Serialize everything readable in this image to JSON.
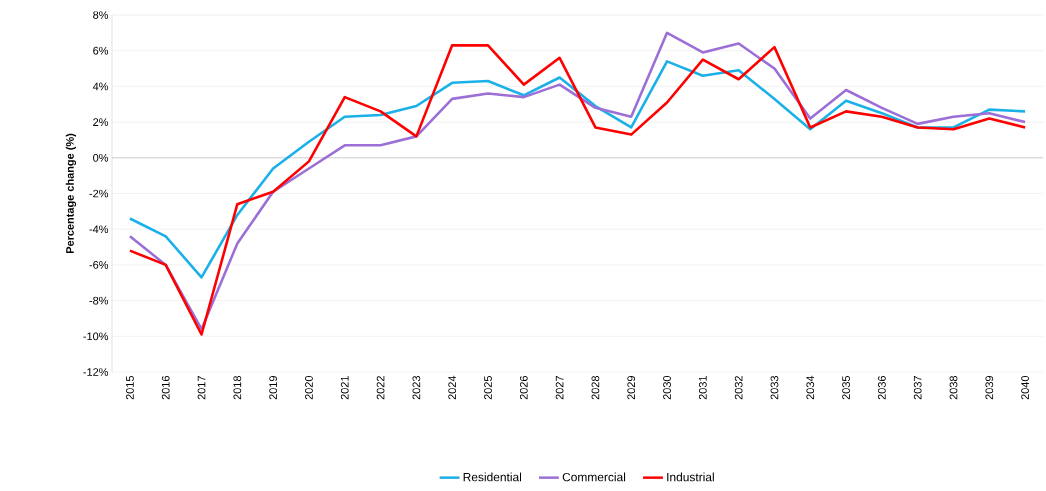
{
  "chart_data": {
    "type": "line",
    "ylabel": "Percentage change (%)",
    "categories": [
      "2015",
      "2016",
      "2017",
      "2018",
      "2019",
      "2020",
      "2021",
      "2022",
      "2023",
      "2024",
      "2025",
      "2026",
      "2027",
      "2028",
      "2029",
      "2030",
      "2031",
      "2032",
      "2033",
      "2034",
      "2035",
      "2036",
      "2037",
      "2038",
      "2039",
      "2040"
    ],
    "series": [
      {
        "name": "Residential",
        "color": "#1ab0e8",
        "values": [
          -3.4,
          -4.4,
          -6.7,
          -3.2,
          -0.6,
          0.9,
          2.3,
          2.4,
          2.9,
          4.2,
          4.3,
          3.5,
          4.5,
          2.9,
          1.7,
          5.4,
          4.6,
          4.9,
          3.3,
          1.6,
          3.2,
          2.5,
          1.7,
          1.7,
          2.7,
          2.6
        ]
      },
      {
        "name": "Commercial",
        "color": "#9b6fd6",
        "values": [
          -4.4,
          -6.0,
          -9.6,
          -4.8,
          -1.9,
          -0.6,
          0.7,
          0.7,
          1.2,
          3.3,
          3.6,
          3.4,
          4.1,
          2.8,
          2.3,
          7.0,
          5.9,
          6.4,
          5.0,
          2.2,
          3.8,
          2.8,
          1.9,
          2.3,
          2.5,
          2.0
        ]
      },
      {
        "name": "Industrial",
        "color": "#ff0000",
        "values": [
          -5.2,
          -6.0,
          -9.9,
          -2.6,
          -1.9,
          -0.2,
          3.4,
          2.6,
          1.2,
          6.3,
          6.3,
          4.1,
          5.6,
          1.7,
          1.3,
          3.1,
          5.5,
          4.4,
          6.2,
          1.7,
          2.6,
          2.3,
          1.7,
          1.6,
          2.2,
          1.7
        ]
      }
    ],
    "ylim": [
      -12,
      8
    ],
    "yticks": [
      {
        "value": -12,
        "label": "-12%"
      },
      {
        "value": -10,
        "label": "-10%"
      },
      {
        "value": -8,
        "label": "-8%"
      },
      {
        "value": -6,
        "label": "-6%"
      },
      {
        "value": -4,
        "label": "-4%"
      },
      {
        "value": -2,
        "label": "-2%"
      },
      {
        "value": 0,
        "label": "0%"
      },
      {
        "value": 2,
        "label": "2%"
      },
      {
        "value": 4,
        "label": "4%"
      },
      {
        "value": 6,
        "label": "6%"
      },
      {
        "value": 8,
        "label": "8%"
      }
    ],
    "grid": "y",
    "legend": "bottom"
  }
}
